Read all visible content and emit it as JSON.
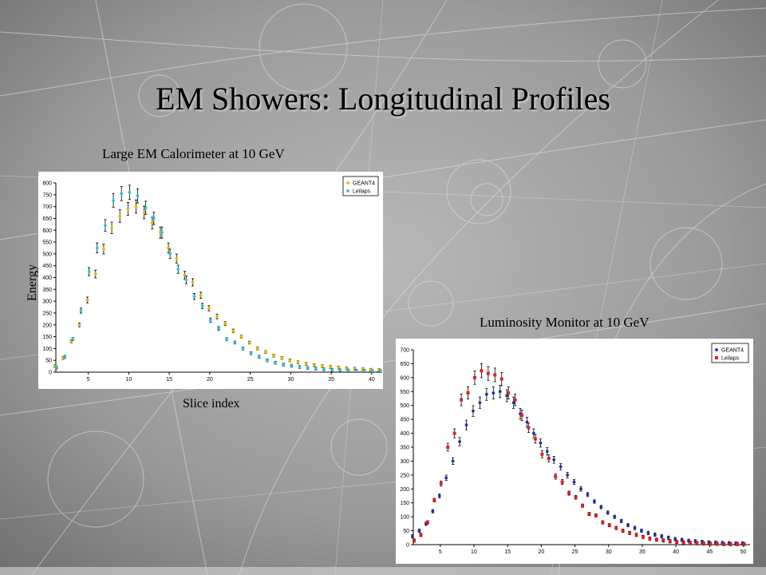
{
  "slide": {
    "title": "EM Showers: Longitudinal Profiles",
    "y_axis_label": "Energy",
    "x_axis_label": "Slice index"
  },
  "chart_data": [
    {
      "type": "scatter",
      "title": "Large EM Calorimeter at 10 GeV",
      "xlim": [
        1,
        41
      ],
      "ylim": [
        0,
        800
      ],
      "xticks": [
        5,
        10,
        15,
        20,
        25,
        30,
        35,
        40
      ],
      "yticks": [
        0,
        50,
        100,
        150,
        200,
        250,
        300,
        350,
        400,
        450,
        500,
        550,
        600,
        650,
        700,
        750,
        800
      ],
      "legend_position": "top-right",
      "series": [
        {
          "name": "GEANT4",
          "color": "#e8b800",
          "x": [
            1,
            2,
            3,
            4,
            5,
            6,
            7,
            8,
            9,
            10,
            11,
            12,
            13,
            14,
            15,
            16,
            17,
            18,
            19,
            20,
            21,
            22,
            23,
            24,
            25,
            26,
            27,
            28,
            29,
            30,
            31,
            32,
            33,
            34,
            35,
            36,
            37,
            38,
            39,
            40,
            41
          ],
          "y": [
            25,
            60,
            130,
            200,
            305,
            415,
            520,
            610,
            660,
            690,
            700,
            675,
            630,
            590,
            525,
            480,
            410,
            380,
            325,
            270,
            235,
            205,
            175,
            150,
            125,
            100,
            85,
            70,
            60,
            50,
            42,
            35,
            30,
            25,
            22,
            19,
            16,
            14,
            12,
            10,
            9
          ]
        },
        {
          "name": "Leilaps",
          "color": "#2ec4d6",
          "x": [
            1,
            2,
            3,
            4,
            5,
            6,
            7,
            8,
            9,
            10,
            11,
            12,
            13,
            14,
            15,
            16,
            17,
            18,
            19,
            20,
            21,
            22,
            23,
            24,
            25,
            26,
            27,
            28,
            29,
            30,
            31,
            32,
            33,
            34,
            35,
            36,
            37,
            38,
            39,
            40,
            41
          ],
          "y": [
            20,
            65,
            140,
            260,
            425,
            525,
            620,
            725,
            755,
            760,
            745,
            695,
            650,
            590,
            500,
            435,
            390,
            320,
            280,
            220,
            185,
            140,
            125,
            100,
            80,
            65,
            50,
            40,
            32,
            27,
            22,
            18,
            15,
            12,
            10,
            8,
            7,
            6,
            5,
            4,
            4
          ]
        }
      ]
    },
    {
      "type": "scatter",
      "title": "Luminosity Monitor at 10 GeV",
      "xlim": [
        1,
        51
      ],
      "ylim": [
        0,
        700
      ],
      "xticks": [
        5,
        10,
        15,
        20,
        25,
        30,
        35,
        40,
        45,
        50
      ],
      "yticks": [
        0,
        50,
        100,
        150,
        200,
        250,
        300,
        350,
        400,
        450,
        500,
        550,
        600,
        650,
        700
      ],
      "legend_position": "top-right",
      "series": [
        {
          "name": "GEANT4",
          "color": "#1f2fa8",
          "x": [
            1,
            2,
            3,
            4,
            5,
            6,
            7,
            8,
            9,
            10,
            11,
            12,
            13,
            14,
            15,
            16,
            17,
            18,
            19,
            20,
            21,
            22,
            23,
            24,
            25,
            26,
            27,
            28,
            29,
            30,
            31,
            32,
            33,
            34,
            35,
            36,
            37,
            38,
            39,
            40,
            41,
            42,
            43,
            44,
            45,
            46,
            47,
            48,
            49,
            50
          ],
          "y": [
            30,
            50,
            75,
            120,
            175,
            240,
            300,
            370,
            430,
            480,
            510,
            540,
            545,
            550,
            535,
            510,
            470,
            440,
            400,
            365,
            335,
            305,
            280,
            250,
            225,
            200,
            180,
            155,
            135,
            115,
            100,
            85,
            70,
            60,
            50,
            42,
            36,
            30,
            25,
            20,
            17,
            14,
            12,
            10,
            8,
            7,
            6,
            5,
            4,
            4
          ]
        },
        {
          "name": "Leilaps",
          "color": "#e02020",
          "x": [
            1,
            2,
            3,
            4,
            5,
            6,
            7,
            8,
            9,
            10,
            11,
            12,
            13,
            14,
            15,
            16,
            17,
            18,
            19,
            20,
            21,
            22,
            23,
            24,
            25,
            26,
            27,
            28,
            29,
            30,
            31,
            32,
            33,
            34,
            35,
            36,
            37,
            38,
            39,
            40,
            41,
            42,
            43,
            44,
            45,
            46,
            47,
            48,
            49,
            50
          ],
          "y": [
            15,
            35,
            80,
            160,
            220,
            350,
            400,
            520,
            545,
            600,
            625,
            615,
            610,
            595,
            545,
            520,
            465,
            420,
            380,
            325,
            310,
            245,
            225,
            185,
            170,
            140,
            110,
            105,
            80,
            70,
            60,
            50,
            42,
            35,
            28,
            22,
            18,
            15,
            12,
            10,
            8,
            6,
            5,
            4,
            3,
            3,
            2,
            2,
            2,
            2
          ]
        }
      ]
    }
  ]
}
